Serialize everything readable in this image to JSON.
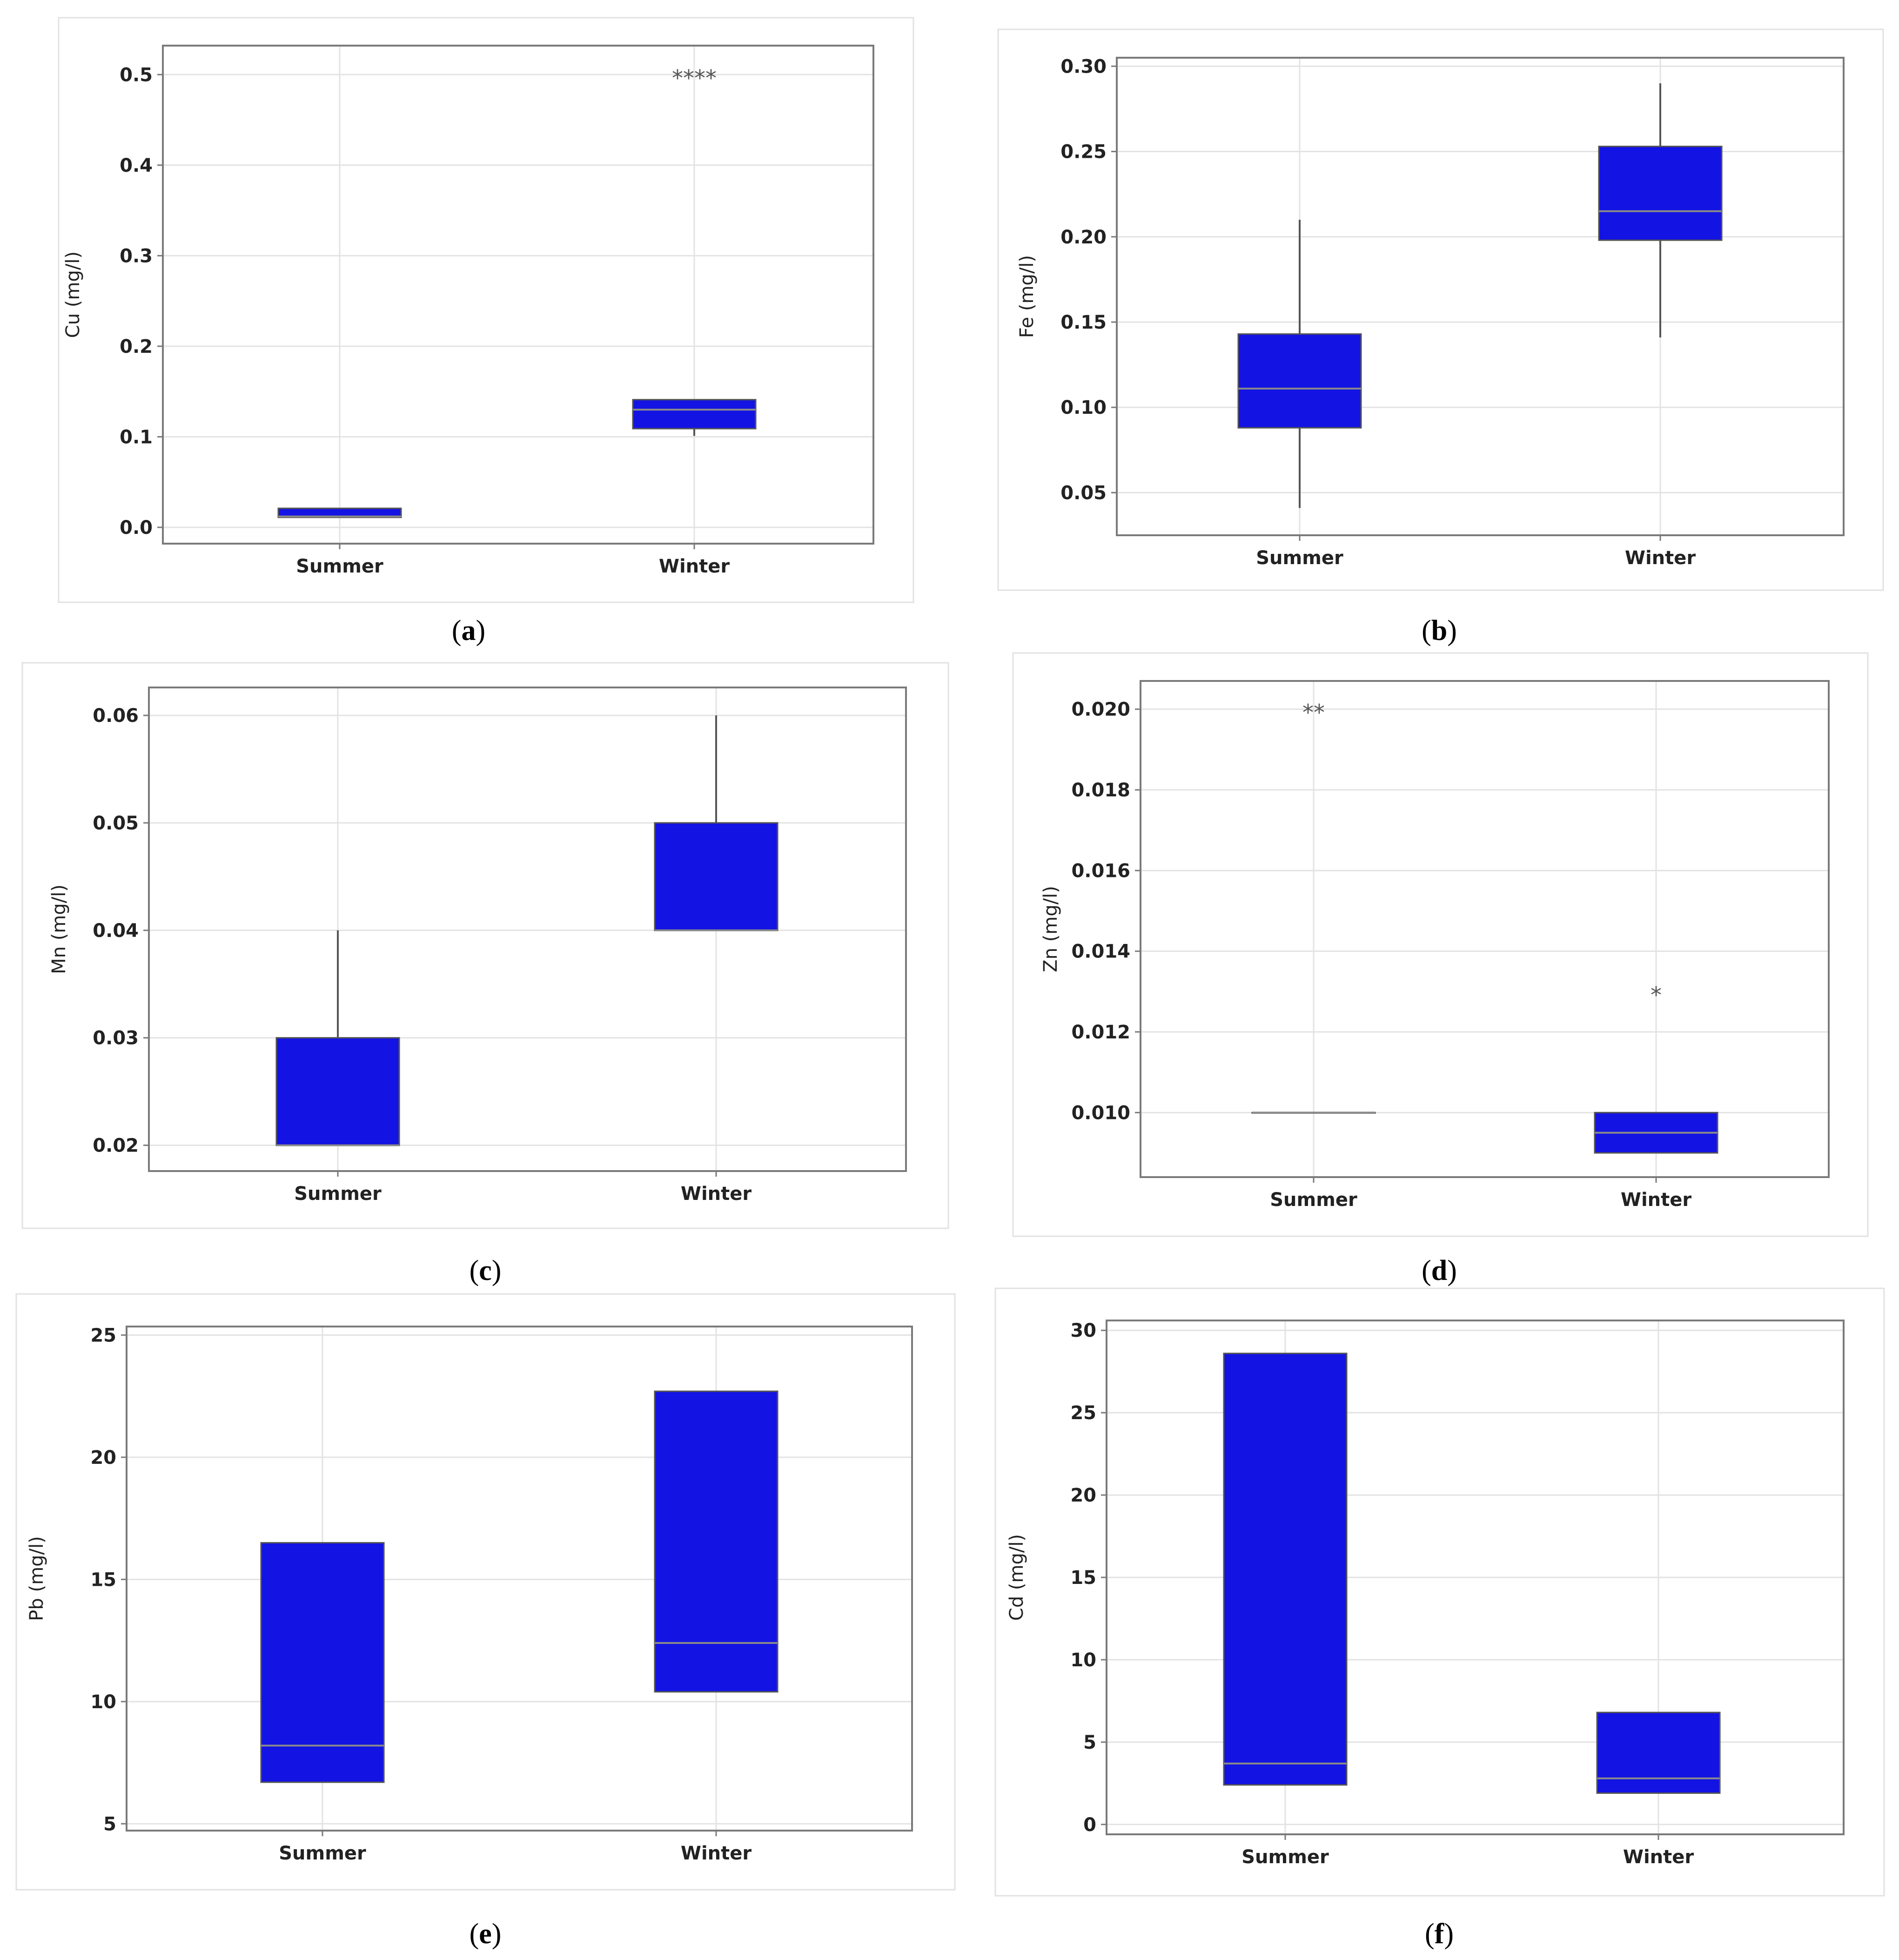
{
  "colors": {
    "box": "#1313e3",
    "median": "#8a8a8a",
    "whisker": "#555555",
    "grid": "#e3e3e3",
    "frame": "#7a7a7a",
    "panel_border": "#e2e2e2"
  },
  "chart_data": [
    {
      "type": "box",
      "panel": "a",
      "caption_letter": "a",
      "caption_open": "(",
      "caption_close": ")",
      "ylabel": "Cu (mg/l)",
      "ylim": [
        -0.018,
        0.532
      ],
      "yticks": [
        0.0,
        0.1,
        0.2,
        0.3,
        0.4,
        0.5
      ],
      "ytick_labels": [
        "0.0",
        "0.1",
        "0.2",
        "0.3",
        "0.4",
        "0.5"
      ],
      "categories": [
        "Summer",
        "Winter"
      ],
      "boxes": [
        {
          "q1": 0.011,
          "median": 0.012,
          "q3": 0.021,
          "whisker_low": 0.011,
          "whisker_high": 0.021
        },
        {
          "q1": 0.109,
          "median": 0.13,
          "q3": 0.141,
          "whisker_low": 0.101,
          "whisker_high": 0.141
        }
      ],
      "outliers": [
        {
          "category_index": 1,
          "value": 0.5,
          "symbol": "****"
        }
      ]
    },
    {
      "type": "box",
      "panel": "b",
      "caption_letter": "b",
      "caption_open": "(",
      "caption_close": ")",
      "ylabel": "Fe (mg/l)",
      "ylim": [
        0.025,
        0.305
      ],
      "yticks": [
        0.05,
        0.1,
        0.15,
        0.2,
        0.25,
        0.3
      ],
      "ytick_labels": [
        "0.05",
        "0.10",
        "0.15",
        "0.20",
        "0.25",
        "0.30"
      ],
      "categories": [
        "Summer",
        "Winter"
      ],
      "boxes": [
        {
          "q1": 0.088,
          "median": 0.111,
          "q3": 0.143,
          "whisker_low": 0.041,
          "whisker_high": 0.21
        },
        {
          "q1": 0.198,
          "median": 0.215,
          "q3": 0.253,
          "whisker_low": 0.141,
          "whisker_high": 0.29
        }
      ],
      "outliers": []
    },
    {
      "type": "box",
      "panel": "c",
      "caption_letter": "c",
      "caption_open": "(",
      "caption_close": ")",
      "ylabel": "Mn (mg/l)",
      "ylim": [
        0.0176,
        0.0626
      ],
      "yticks": [
        0.02,
        0.03,
        0.04,
        0.05,
        0.06
      ],
      "ytick_labels": [
        "0.02",
        "0.03",
        "0.04",
        "0.05",
        "0.06"
      ],
      "categories": [
        "Summer",
        "Winter"
      ],
      "boxes": [
        {
          "q1": 0.02,
          "median": 0.02,
          "q3": 0.03,
          "whisker_low": 0.02,
          "whisker_high": 0.04
        },
        {
          "q1": 0.04,
          "median": 0.04,
          "q3": 0.05,
          "whisker_low": 0.04,
          "whisker_high": 0.06
        }
      ],
      "outliers": []
    },
    {
      "type": "box",
      "panel": "d",
      "caption_letter": "d",
      "caption_open": "(",
      "caption_close": ")",
      "ylabel": "Zn (mg/l)",
      "ylim": [
        0.0084,
        0.0207
      ],
      "yticks": [
        0.01,
        0.012,
        0.014,
        0.016,
        0.018,
        0.02
      ],
      "ytick_labels": [
        "0.010",
        "0.012",
        "0.014",
        "0.016",
        "0.018",
        "0.020"
      ],
      "categories": [
        "Summer",
        "Winter"
      ],
      "boxes": [
        {
          "q1": 0.01,
          "median": 0.01,
          "q3": 0.01,
          "whisker_low": 0.01,
          "whisker_high": 0.01
        },
        {
          "q1": 0.009,
          "median": 0.0095,
          "q3": 0.01,
          "whisker_low": 0.009,
          "whisker_high": 0.01
        }
      ],
      "outliers": [
        {
          "category_index": 0,
          "value": 0.02,
          "symbol": "**"
        },
        {
          "category_index": 1,
          "value": 0.013,
          "symbol": "*"
        }
      ]
    },
    {
      "type": "box",
      "panel": "e",
      "caption_letter": "e",
      "caption_open": "(",
      "caption_close": ")",
      "ylabel": "Pb (mg/l)",
      "ylim": [
        4.72,
        25.35
      ],
      "yticks": [
        5,
        10,
        15,
        20,
        25
      ],
      "ytick_labels": [
        "5",
        "10",
        "15",
        "20",
        "25"
      ],
      "categories": [
        "Summer",
        "Winter"
      ],
      "boxes": [
        {
          "q1": 6.7,
          "median": 8.2,
          "q3": 16.5,
          "whisker_low": 6.7,
          "whisker_high": 16.5
        },
        {
          "q1": 10.4,
          "median": 12.4,
          "q3": 22.7,
          "whisker_low": 10.4,
          "whisker_high": 22.7
        }
      ],
      "outliers": []
    },
    {
      "type": "box",
      "panel": "f",
      "caption_letter": "f",
      "caption_open": "(",
      "caption_close": ")",
      "ylabel": "Cd (mg/l)",
      "ylim": [
        -0.6,
        30.6
      ],
      "yticks": [
        0,
        5,
        10,
        15,
        20,
        25,
        30
      ],
      "ytick_labels": [
        "0",
        "5",
        "10",
        "15",
        "20",
        "25",
        "30"
      ],
      "categories": [
        "Summer",
        "Winter"
      ],
      "boxes": [
        {
          "q1": 2.4,
          "median": 3.7,
          "q3": 28.6,
          "whisker_low": 2.4,
          "whisker_high": 28.6
        },
        {
          "q1": 1.9,
          "median": 2.8,
          "q3": 6.8,
          "whisker_low": 1.9,
          "whisker_high": 6.8
        }
      ],
      "outliers": []
    }
  ]
}
